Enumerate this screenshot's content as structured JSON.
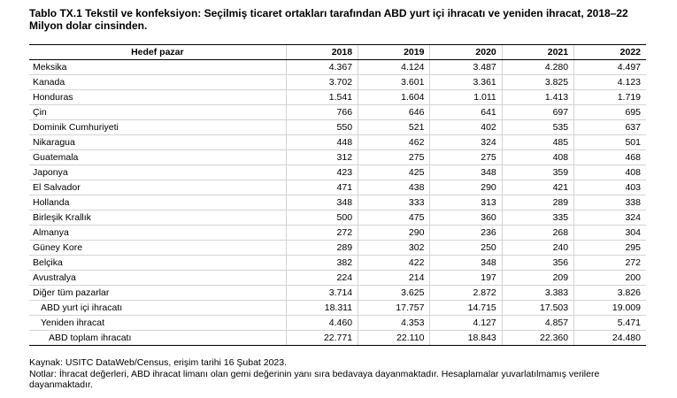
{
  "title": "Tablo TX.1 Tekstil ve konfeksiyon: Seçilmiş ticaret ortakları tarafından ABD yurt içi ihracatı ve yeniden ihracat, 2018–22",
  "subtitle": "Milyon dolar cinsinden.",
  "table": {
    "header_label": "Hedef pazar",
    "years": [
      "2018",
      "2019",
      "2020",
      "2021",
      "2022"
    ],
    "rows": [
      {
        "label": "Meksika",
        "values": [
          "4.367",
          "4.124",
          "3.487",
          "4.280",
          "4.497"
        ],
        "indent": 0
      },
      {
        "label": "Kanada",
        "values": [
          "3.702",
          "3.601",
          "3.361",
          "3.825",
          "4.123"
        ],
        "indent": 0
      },
      {
        "label": "Honduras",
        "values": [
          "1.541",
          "1.604",
          "1.011",
          "1.413",
          "1.719"
        ],
        "indent": 0
      },
      {
        "label": "Çin",
        "values": [
          "766",
          "646",
          "641",
          "697",
          "695"
        ],
        "indent": 0
      },
      {
        "label": "Dominik Cumhuriyeti",
        "values": [
          "550",
          "521",
          "402",
          "535",
          "637"
        ],
        "indent": 0
      },
      {
        "label": "Nikaragua",
        "values": [
          "448",
          "462",
          "324",
          "485",
          "501"
        ],
        "indent": 0
      },
      {
        "label": "Guatemala",
        "values": [
          "312",
          "275",
          "275",
          "408",
          "468"
        ],
        "indent": 0
      },
      {
        "label": "Japonya",
        "values": [
          "423",
          "425",
          "348",
          "359",
          "408"
        ],
        "indent": 0
      },
      {
        "label": "El Salvador",
        "values": [
          "471",
          "438",
          "290",
          "421",
          "403"
        ],
        "indent": 0
      },
      {
        "label": "Hollanda",
        "values": [
          "348",
          "333",
          "313",
          "289",
          "338"
        ],
        "indent": 0
      },
      {
        "label": "Birleşik Krallık",
        "values": [
          "500",
          "475",
          "360",
          "335",
          "324"
        ],
        "indent": 0
      },
      {
        "label": "Almanya",
        "values": [
          "272",
          "290",
          "236",
          "268",
          "304"
        ],
        "indent": 0
      },
      {
        "label": "Güney Kore",
        "values": [
          "289",
          "302",
          "250",
          "240",
          "295"
        ],
        "indent": 0
      },
      {
        "label": "Belçika",
        "values": [
          "382",
          "422",
          "348",
          "356",
          "272"
        ],
        "indent": 0
      },
      {
        "label": "Avustralya",
        "values": [
          "224",
          "214",
          "197",
          "209",
          "200"
        ],
        "indent": 0
      },
      {
        "label": "Diğer tüm pazarlar",
        "values": [
          "3.714",
          "3.625",
          "2.872",
          "3.383",
          "3.826"
        ],
        "indent": 0
      },
      {
        "label": "ABD yurt içi ihracatı",
        "values": [
          "18.311",
          "17.757",
          "14.715",
          "17.503",
          "19.009"
        ],
        "indent": 1
      },
      {
        "label": "Yeniden ihracat",
        "values": [
          "4.460",
          "4.353",
          "4.127",
          "4.857",
          "5.471"
        ],
        "indent": 1
      },
      {
        "label": "ABD toplam ihracatı",
        "values": [
          "22.771",
          "22.110",
          "18.843",
          "22.360",
          "24.480"
        ],
        "indent": 2
      }
    ]
  },
  "notes": {
    "source": "Kaynak: USITC DataWeb/Census, erişim tarihi 16 Şubat 2023.",
    "notes": "Notlar: İhracat değerleri, ABD ihracat limanı olan gemi değerinin yanı sıra bedavaya dayanmaktadır. Hesaplamalar yuvarlatılmamış verilere dayanmaktadır."
  }
}
